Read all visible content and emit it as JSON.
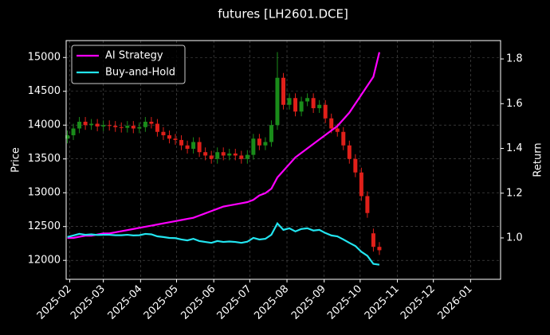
{
  "chart_data": {
    "type": "candlestick",
    "title": "futures [LH2601.DCE]",
    "ylabel": "Price",
    "y2label": "Return",
    "x": [
      -2,
      3,
      8,
      13,
      18,
      23,
      28,
      33,
      38,
      43,
      48,
      53,
      58,
      63,
      68,
      73,
      78,
      83,
      88,
      93,
      98,
      103,
      108,
      113,
      118,
      123,
      128,
      133,
      138,
      143,
      148,
      153,
      158,
      163,
      168,
      173,
      178,
      183,
      188,
      193,
      198,
      203,
      208,
      213,
      218,
      223,
      228,
      233,
      238,
      243,
      248,
      253,
      258
    ],
    "open": [
      13800,
      13850,
      13950,
      14050,
      14000,
      14020,
      13980,
      14000,
      13990,
      13970,
      13960,
      13990,
      13950,
      13970,
      14050,
      14020,
      13900,
      13850,
      13800,
      13780,
      13700,
      13650,
      13750,
      13600,
      13550,
      13500,
      13600,
      13550,
      13580,
      13550,
      13500,
      13560,
      13800,
      13700,
      13750,
      14000,
      14700,
      14300,
      14400,
      14200,
      14350,
      14400,
      14250,
      14300,
      14100,
      13950,
      13900,
      13700,
      13500,
      13300,
      12950,
      12400,
      12200
    ],
    "high": [
      13920,
      14020,
      14120,
      14120,
      14090,
      14090,
      14070,
      14070,
      14060,
      14040,
      14060,
      14060,
      14040,
      14120,
      14120,
      14090,
      13970,
      13920,
      13870,
      13850,
      13770,
      13820,
      13820,
      13670,
      13620,
      13670,
      13670,
      13650,
      13650,
      13620,
      13630,
      13870,
      13870,
      13820,
      14070,
      15080,
      14770,
      14470,
      14470,
      14420,
      14470,
      14470,
      14370,
      14370,
      14170,
      14020,
      13970,
      13770,
      13570,
      13370,
      13020,
      12470,
      12270
    ],
    "low": [
      13730,
      13780,
      13880,
      13930,
      13930,
      13910,
      13910,
      13920,
      13900,
      13890,
      13890,
      13880,
      13880,
      13900,
      13950,
      13830,
      13780,
      13730,
      13710,
      13630,
      13580,
      13580,
      13530,
      13480,
      13430,
      13430,
      13480,
      13480,
      13480,
      13430,
      13430,
      13490,
      13630,
      13630,
      13680,
      13930,
      14230,
      14230,
      14130,
      14130,
      14280,
      14180,
      14180,
      14030,
      13880,
      13830,
      13630,
      13430,
      13230,
      12880,
      12630,
      12130,
      12080
    ],
    "close": [
      13850,
      13950,
      14050,
      14000,
      14020,
      13980,
      14000,
      13990,
      13970,
      13960,
      13990,
      13950,
      13970,
      14050,
      14020,
      13900,
      13850,
      13800,
      13780,
      13700,
      13650,
      13750,
      13600,
      13550,
      13500,
      13600,
      13550,
      13580,
      13550,
      13500,
      13560,
      13800,
      13700,
      13750,
      14000,
      14700,
      14300,
      14400,
      14200,
      14350,
      14400,
      14250,
      14300,
      14100,
      13950,
      13900,
      13700,
      13500,
      13300,
      12950,
      12700,
      12200,
      12150
    ],
    "up_color": "#1a8c1a",
    "down_color": "#e0201a",
    "series": [
      {
        "name": "AI Strategy",
        "color": "#ff00ff",
        "axis": "y2",
        "values": [
          1.0,
          1.0,
          1.005,
          1.01,
          1.01,
          1.015,
          1.02,
          1.02,
          1.025,
          1.03,
          1.035,
          1.04,
          1.045,
          1.05,
          1.055,
          1.06,
          1.065,
          1.07,
          1.075,
          1.08,
          1.085,
          1.09,
          1.1,
          1.11,
          1.12,
          1.13,
          1.14,
          1.145,
          1.15,
          1.155,
          1.16,
          1.17,
          1.19,
          1.2,
          1.22,
          1.27,
          1.3,
          1.33,
          1.36,
          1.38,
          1.4,
          1.42,
          1.44,
          1.46,
          1.48,
          1.5,
          1.53,
          1.56,
          1.6,
          1.64,
          1.68,
          1.72,
          1.83
        ]
      },
      {
        "name": "Buy-and-Hold",
        "color": "#22e5f0",
        "axis": "y2",
        "values": [
          1.004,
          1.011,
          1.018,
          1.014,
          1.016,
          1.013,
          1.014,
          1.014,
          1.012,
          1.012,
          1.014,
          1.011,
          1.012,
          1.018,
          1.016,
          1.007,
          1.004,
          1.0,
          0.999,
          0.993,
          0.989,
          0.996,
          0.986,
          0.982,
          0.978,
          0.986,
          0.982,
          0.984,
          0.982,
          0.978,
          0.983,
          1.0,
          0.993,
          0.996,
          1.014,
          1.065,
          1.036,
          1.043,
          1.029,
          1.04,
          1.043,
          1.033,
          1.036,
          1.022,
          1.011,
          1.007,
          0.993,
          0.978,
          0.964,
          0.938,
          0.92,
          0.884,
          0.88
        ]
      }
    ],
    "xlim": [
      -3,
      359
    ],
    "xticks": [
      {
        "value": 0,
        "label": "2025-02"
      },
      {
        "value": 28,
        "label": "2025-03"
      },
      {
        "value": 59,
        "label": "2025-04"
      },
      {
        "value": 89,
        "label": "2025-05"
      },
      {
        "value": 120,
        "label": "2025-06"
      },
      {
        "value": 150,
        "label": "2025-07"
      },
      {
        "value": 181,
        "label": "2025-08"
      },
      {
        "value": 212,
        "label": "2025-09"
      },
      {
        "value": 242,
        "label": "2025-10"
      },
      {
        "value": 273,
        "label": "2025-11"
      },
      {
        "value": 303,
        "label": "2025-12"
      },
      {
        "value": 334,
        "label": "2026-01"
      }
    ],
    "ylim": [
      11720,
      15250
    ],
    "yticks": [
      12000,
      12500,
      13000,
      13500,
      14000,
      14500,
      15000
    ],
    "y2lim": [
      0.815,
      1.882
    ],
    "y2ticks": [
      {
        "value": 1.0,
        "label": "1.0"
      },
      1.2,
      1.4,
      1.6,
      1.8
    ],
    "grid": true,
    "legend": "upper left"
  }
}
